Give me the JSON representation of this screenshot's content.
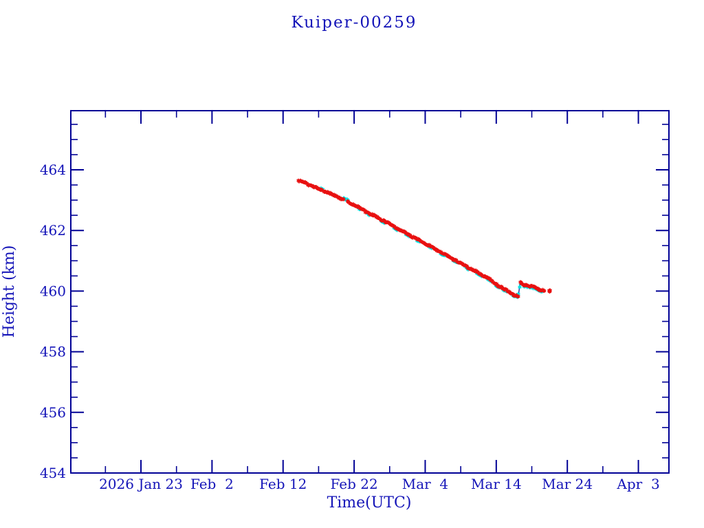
{
  "window": {
    "background": "#ffffff"
  },
  "colors": {
    "axis": "#000095",
    "text": "#1414b8",
    "line": "#00008b",
    "red_marker": "#e81010",
    "cyan_marker": "#00e2e2"
  },
  "chart_data": {
    "type": "scatter",
    "title": "Kuiper-00259",
    "xlabel": "Time(UTC)",
    "ylabel": "Height (km)",
    "grid": false,
    "legend": "none",
    "x_axis": {
      "unit": "days since 2026 Jan 23",
      "range_days": [
        -9.87,
        74.3
      ],
      "tick_days": [
        0,
        10,
        20,
        30,
        40,
        50,
        60,
        70
      ],
      "tick_labels": [
        "2026 Jan 23",
        "Feb  2",
        "Feb 12",
        "Feb 22",
        "Mar  4",
        "Mar 14",
        "Mar 24",
        "Apr  3"
      ],
      "minor_tick_days": [
        -5,
        5,
        15,
        25,
        35,
        45,
        55,
        65
      ]
    },
    "y_axis": {
      "unit": "km",
      "range": [
        454,
        465.95
      ],
      "ticks": [
        454,
        456,
        458,
        460,
        462,
        464
      ],
      "minor_step": 0.5
    },
    "series": [
      {
        "name": "height-observed-red",
        "marker": "asterisk",
        "color": "#e81010",
        "points": [
          [
            22.2,
            463.65
          ],
          [
            23,
            463.58
          ],
          [
            24,
            463.48
          ],
          [
            25,
            463.38
          ],
          [
            26,
            463.28
          ],
          [
            27,
            463.18
          ],
          [
            27.8,
            463.1
          ],
          [
            28.6,
            463.01
          ],
          [
            29.4,
            462.92
          ],
          [
            30,
            462.84
          ],
          [
            31,
            462.71
          ],
          [
            32,
            462.58
          ],
          [
            33,
            462.46
          ],
          [
            34,
            462.34
          ],
          [
            35,
            462.21
          ],
          [
            36,
            462.08
          ],
          [
            37,
            461.95
          ],
          [
            38,
            461.82
          ],
          [
            39,
            461.69
          ],
          [
            40,
            461.57
          ],
          [
            41,
            461.44
          ],
          [
            42,
            461.31
          ],
          [
            43,
            461.18
          ],
          [
            44,
            461.05
          ],
          [
            45,
            460.92
          ],
          [
            46,
            460.79
          ],
          [
            47,
            460.66
          ],
          [
            48,
            460.53
          ],
          [
            49,
            460.4
          ],
          [
            50,
            460.22
          ],
          [
            51,
            460.08
          ],
          [
            52,
            459.95
          ],
          [
            52.6,
            459.87
          ],
          [
            53.1,
            459.81
          ],
          [
            53.35,
            460.3
          ],
          [
            53.8,
            460.22
          ],
          [
            54.5,
            460.18
          ],
          [
            55.5,
            460.11
          ],
          [
            56.8,
            460.01
          ]
        ],
        "sample_segments": [
          {
            "from": 22.2,
            "to": 53.1,
            "step": 0.1
          },
          {
            "from": 53.35,
            "to": 56.8,
            "step": 0.1
          },
          {
            "from": 57.4,
            "to": 57.6,
            "step": 0.1
          }
        ],
        "skip_ranges": [
          [
            28.6,
            29.05
          ]
        ],
        "isolated_points": [
          [
            57.5,
            459.98
          ]
        ]
      },
      {
        "name": "height-secondary-cyan",
        "marker": "asterisk",
        "color": "#00e2e2",
        "intervals": [
          [
            25.3,
            25.6
          ],
          [
            28.5,
            29.2
          ],
          [
            30.6,
            30.9
          ],
          [
            31.9,
            32.2
          ],
          [
            33.8,
            34.3
          ],
          [
            35.6,
            36.1
          ],
          [
            37.3,
            37.8
          ],
          [
            38.9,
            39.3
          ],
          [
            40.6,
            41.0
          ],
          [
            42.2,
            42.8
          ],
          [
            44.0,
            44.6
          ],
          [
            45.7,
            46.1
          ],
          [
            47.2,
            48.0
          ],
          [
            48.8,
            49.3
          ],
          [
            49.9,
            50.4
          ],
          [
            50.9,
            51.5
          ],
          [
            52.2,
            53.4
          ],
          [
            53.9,
            56.6
          ]
        ],
        "step": 0.12
      }
    ],
    "connector_line_color": "#00008b",
    "annotations": {
      "dip": {
        "t": 53.1,
        "height": 459.81
      },
      "boost_top": {
        "t": 53.35,
        "height": 460.3
      }
    }
  }
}
